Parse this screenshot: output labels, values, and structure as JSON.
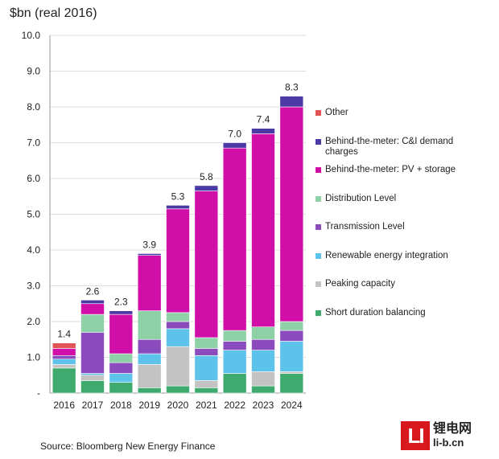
{
  "chart_data": {
    "type": "bar",
    "stacked": true,
    "ylabel": "$bn (real 2016)",
    "ylim": [
      0,
      10
    ],
    "yticks": [
      "10.0",
      "9.0",
      "8.0",
      "7.0",
      "6.0",
      "5.0",
      "4.0",
      "3.0",
      "2.0",
      "1.0",
      "-"
    ],
    "categories": [
      "2016",
      "2017",
      "2018",
      "2019",
      "2020",
      "2021",
      "2022",
      "2023",
      "2024"
    ],
    "totals": [
      "1.4",
      "2.6",
      "2.3",
      "3.9",
      "5.3",
      "5.8",
      "7.0",
      "7.4",
      "8.3"
    ],
    "series": [
      {
        "name": "Short duration balancing",
        "color": "#3faa6e",
        "values": [
          0.7,
          0.35,
          0.3,
          0.15,
          0.2,
          0.15,
          0.55,
          0.2,
          0.55
        ]
      },
      {
        "name": "Peaking capacity",
        "color": "#c3c3c3",
        "values": [
          0.1,
          0.15,
          0.0,
          0.65,
          1.1,
          0.2,
          0.0,
          0.4,
          0.05
        ]
      },
      {
        "name": "Renewable energy integration",
        "color": "#5ec3ea",
        "values": [
          0.15,
          0.05,
          0.25,
          0.3,
          0.5,
          0.7,
          0.65,
          0.6,
          0.85
        ]
      },
      {
        "name": "Transmission Level",
        "color": "#8a4bbd",
        "values": [
          0.1,
          1.15,
          0.3,
          0.4,
          0.2,
          0.2,
          0.25,
          0.3,
          0.3
        ]
      },
      {
        "name": "Distribution Level",
        "color": "#8fd1a7",
        "values": [
          0.0,
          0.5,
          0.25,
          0.8,
          0.25,
          0.3,
          0.3,
          0.35,
          0.25
        ]
      },
      {
        "name": "Behind-the-meter: PV + storage",
        "color": "#d10fa8",
        "values": [
          0.2,
          0.3,
          1.1,
          1.55,
          2.9,
          4.1,
          5.1,
          5.4,
          6.0
        ]
      },
      {
        "name": "Behind-the-meter: C&I demand charges",
        "color": "#4b3aa6",
        "values": [
          0.0,
          0.1,
          0.1,
          0.05,
          0.1,
          0.15,
          0.15,
          0.15,
          0.3
        ]
      },
      {
        "name": "Other",
        "color": "#e05454",
        "values": [
          0.15,
          0.0,
          0.0,
          0.0,
          0.0,
          0.0,
          0.0,
          0.0,
          0.0
        ]
      }
    ],
    "legend_order": [
      "Other",
      "Behind-the-meter: C&I demand charges",
      "Behind-the-meter: PV + storage",
      "Distribution Level",
      "Transmission Level",
      "Renewable energy integration",
      "Peaking capacity",
      "Short duration balancing"
    ],
    "grid": true,
    "legend": "right"
  },
  "source": "Source: Bloomberg New Energy Finance",
  "logo": {
    "cn": "锂电网",
    "url": "li-b.cn",
    "mark": "LI"
  }
}
